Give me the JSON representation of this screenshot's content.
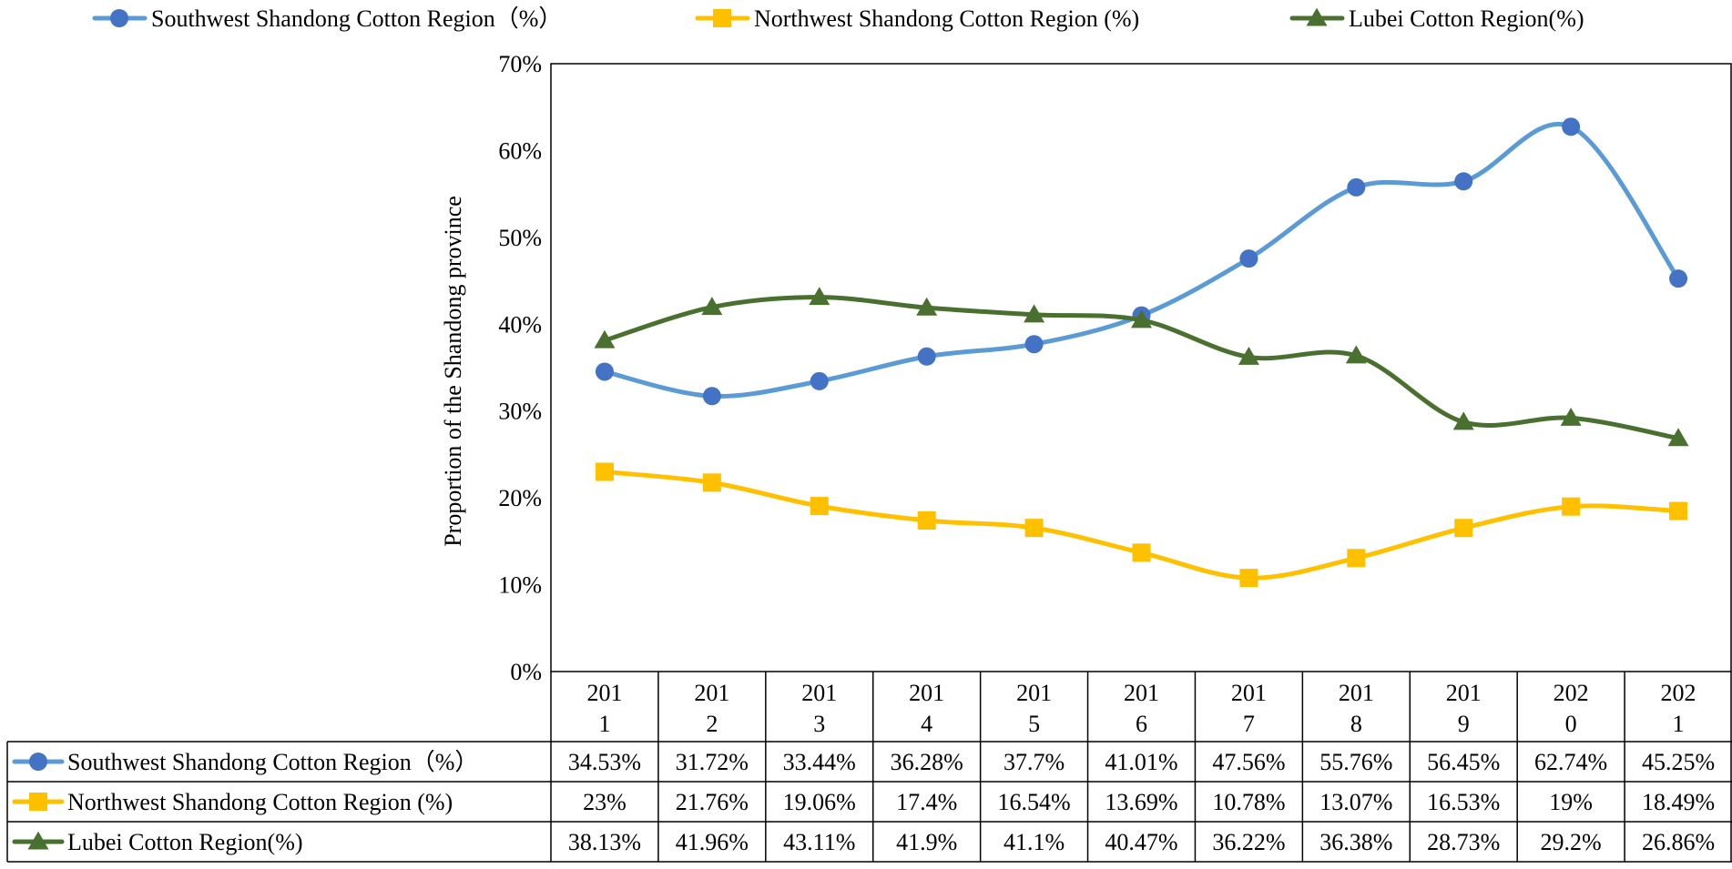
{
  "chart_data": {
    "type": "line",
    "title": "",
    "xlabel": "",
    "ylabel": "Proportion of the Shandong province",
    "ylim": [
      0,
      70
    ],
    "yticks": [
      "0%",
      "10%",
      "20%",
      "30%",
      "40%",
      "50%",
      "60%",
      "70%"
    ],
    "categories": [
      [
        "201",
        "1"
      ],
      [
        "201",
        "2"
      ],
      [
        "201",
        "3"
      ],
      [
        "201",
        "4"
      ],
      [
        "201",
        "5"
      ],
      [
        "201",
        "6"
      ],
      [
        "201",
        "7"
      ],
      [
        "201",
        "8"
      ],
      [
        "201",
        "9"
      ],
      [
        "202",
        "0"
      ],
      [
        "202",
        "1"
      ]
    ],
    "legend_position": "top",
    "series": [
      {
        "name": "Southwest Shandong Cotton Region（%）",
        "color": "#5b9bd5",
        "marker_color": "#4472c4",
        "marker": "circle",
        "values": [
          34.53,
          31.72,
          33.44,
          36.28,
          37.7,
          41.01,
          47.56,
          55.76,
          56.45,
          62.74,
          45.25
        ],
        "labels": [
          "34.53%",
          "31.72%",
          "33.44%",
          "36.28%",
          "37.7%",
          "41.01%",
          "47.56%",
          "55.76%",
          "56.45%",
          "62.74%",
          "45.25%"
        ]
      },
      {
        "name": "Northwest Shandong Cotton Region (%)",
        "color": "#ffc000",
        "marker_color": "#ffc000",
        "marker": "square",
        "values": [
          23,
          21.76,
          19.06,
          17.4,
          16.54,
          13.69,
          10.78,
          13.07,
          16.53,
          19,
          18.49
        ],
        "labels": [
          "23%",
          "21.76%",
          "19.06%",
          "17.4%",
          "16.54%",
          "13.69%",
          "10.78%",
          "13.07%",
          "16.53%",
          "19%",
          "18.49%"
        ]
      },
      {
        "name": "Lubei Cotton Region(%)",
        "color": "#4a7030",
        "marker_color": "#4a7030",
        "marker": "triangle",
        "values": [
          38.13,
          41.96,
          43.11,
          41.9,
          41.1,
          40.47,
          36.22,
          36.38,
          28.73,
          29.2,
          26.86
        ],
        "labels": [
          "38.13%",
          "41.96%",
          "43.11%",
          "41.9%",
          "41.1%",
          "40.47%",
          "36.22%",
          "36.38%",
          "28.73%",
          "29.2%",
          "26.86%"
        ]
      }
    ]
  }
}
